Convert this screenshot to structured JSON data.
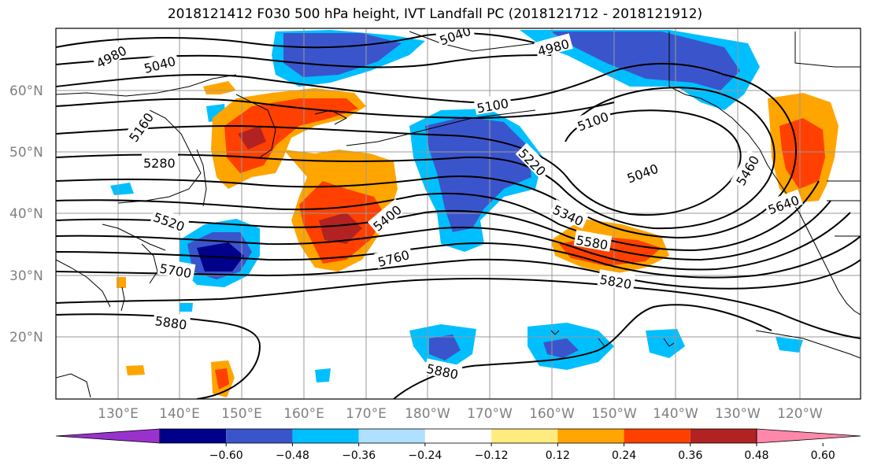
{
  "title": "2018121412 F030 500 hPa height, IVT Landfall PC (2018121712 - 2018121912)",
  "map": {
    "lat_labels": [
      "60°N",
      "50°N",
      "40°N",
      "30°N",
      "20°N"
    ],
    "lon_labels": [
      "130°E",
      "140°E",
      "150°E",
      "160°E",
      "170°E",
      "180°W",
      "170°W",
      "160°W",
      "150°W",
      "140°W",
      "130°W",
      "120°W"
    ],
    "contour_labels": [
      "4980",
      "5040",
      "5040",
      "4980",
      "5160",
      "5100",
      "5100",
      "5040",
      "5280",
      "5220",
      "5460",
      "5520",
      "5400",
      "5340",
      "5640",
      "5580",
      "5700",
      "5760",
      "5820",
      "5880",
      "5880"
    ],
    "colors": {
      "shade_neg_strong": "#3a55cc",
      "shade_neg_mid": "#00bfff",
      "shade_neg_weak": "#b0e0ff",
      "shade_pos_weak": "#ffeb80",
      "shade_pos_mid": "#ffa500",
      "shade_pos_strong": "#ff4000",
      "shade_pos_max": "#b22222",
      "grid": "#999999"
    }
  },
  "colorbar": {
    "ticks": [
      "−0.60",
      "−0.48",
      "−0.36",
      "−0.24",
      "−0.12",
      "0.12",
      "0.24",
      "0.36",
      "0.48",
      "0.60"
    ],
    "colors": [
      "#9932cc",
      "#00008b",
      "#3a55cc",
      "#00bfff",
      "#b0e0ff",
      "#ffffff",
      "#ffeb80",
      "#ffa500",
      "#ff4000",
      "#b22222",
      "#ff88aa"
    ]
  }
}
